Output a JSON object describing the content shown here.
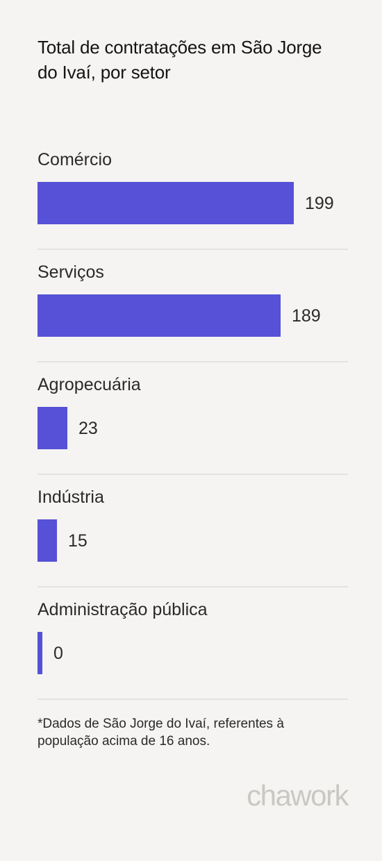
{
  "title": "Total de contratações em São Jorge do Ivaí, por setor",
  "chart_data": {
    "type": "bar",
    "orientation": "horizontal",
    "categories": [
      "Comércio",
      "Serviços",
      "Agropecuária",
      "Indústria",
      "Administração pública"
    ],
    "values": [
      199,
      189,
      23,
      15,
      0
    ],
    "value_labels": [
      "199",
      "189",
      "23",
      "15",
      "0"
    ],
    "bar_color": "#5651d6",
    "grid": false,
    "legend": "none"
  },
  "footnote": "*Dados de São Jorge do Ivaí, referentes à população acima de 16 anos.",
  "brand": {
    "logo_text": "chawork"
  }
}
